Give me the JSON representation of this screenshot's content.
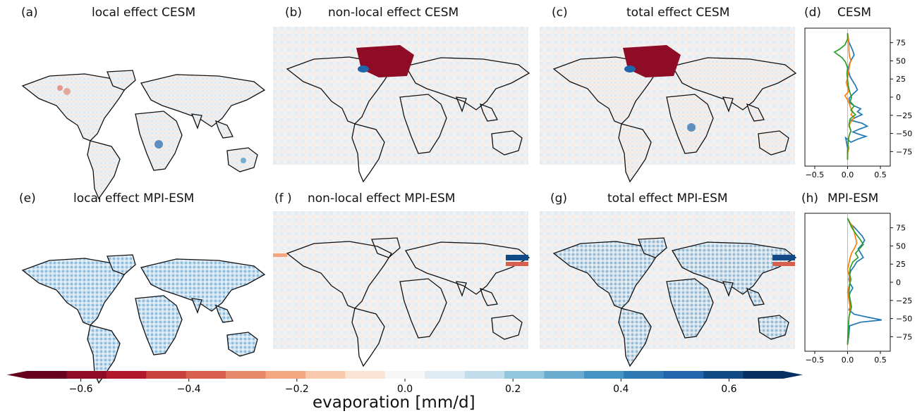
{
  "panels": {
    "a": {
      "letter": "(a)",
      "title": "local effect CESM"
    },
    "b": {
      "letter": "(b)",
      "title": "non-local effect CESM"
    },
    "c": {
      "letter": "(c)",
      "title": "total effect CESM"
    },
    "d": {
      "letter": "(d)",
      "title": "CESM"
    },
    "e": {
      "letter": "(e)",
      "title": "local effect MPI-ESM"
    },
    "f": {
      "letter": "(f )",
      "title": "non-local effect MPI-ESM"
    },
    "g": {
      "letter": "(g)",
      "title": "total effect MPI-ESM"
    },
    "h": {
      "letter": "(h)",
      "title": "MPI-ESM"
    }
  },
  "colorbar": {
    "label": "evaporation [mm/d]",
    "ticks": [
      "−0.6",
      "−0.4",
      "−0.2",
      "0.0",
      "0.2",
      "0.4",
      "0.6"
    ],
    "tick_values": [
      -0.6,
      -0.4,
      -0.2,
      0.0,
      0.2,
      0.4,
      0.6
    ],
    "range": [
      -0.7,
      0.7
    ],
    "colors": [
      "#67001f",
      "#8e0c25",
      "#b2182b",
      "#c8413e",
      "#d6604d",
      "#e6896b",
      "#f4a582",
      "#f9c9ae",
      "#fbe3d4",
      "#f7f7f7",
      "#deebf2",
      "#c1dcea",
      "#92c5de",
      "#6aaccf",
      "#4393c3",
      "#2f79b5",
      "#2166ac",
      "#124a85",
      "#053061"
    ]
  },
  "chart_data": [
    {
      "type": "line",
      "panel": "d",
      "title": "CESM",
      "xlim": [
        -0.65,
        0.65
      ],
      "ylim": [
        -95,
        95
      ],
      "xticks": [
        "−0.5",
        "0.0",
        "0.5"
      ],
      "xtick_values": [
        -0.5,
        0.0,
        0.5
      ],
      "yticks": [
        "75",
        "50",
        "25",
        "0",
        "−25",
        "−50",
        "−75"
      ],
      "ytick_values": [
        75,
        50,
        25,
        0,
        -25,
        -50,
        -75
      ],
      "series": [
        {
          "color": "#1f77b4",
          "x": [
            0.0,
            0.01,
            0.02,
            0.05,
            0.08,
            0.1,
            0.06,
            0.03,
            0.01,
            0.02,
            0.04,
            0.08,
            0.12,
            0.15,
            0.08,
            0.02,
            0.04,
            0.1,
            0.2,
            0.15,
            0.22,
            0.12,
            0.05,
            0.22,
            0.3,
            0.18,
            0.08,
            0.2,
            0.28,
            0.15,
            0.05,
            -0.03,
            0.0,
            0.0
          ],
          "y": [
            88,
            82,
            76,
            70,
            64,
            58,
            52,
            46,
            40,
            34,
            28,
            22,
            16,
            10,
            4,
            -2,
            -8,
            -12,
            -16,
            -20,
            -24,
            -28,
            -32,
            -36,
            -40,
            -44,
            -48,
            -52,
            -54,
            -58,
            -62,
            -56,
            -70,
            -86
          ]
        },
        {
          "color": "#ff7f0e",
          "x": [
            0.0,
            0.01,
            0.02,
            0.02,
            0.03,
            0.05,
            0.03,
            0.02,
            0.01,
            0.0,
            -0.02,
            0.0,
            0.02,
            -0.04,
            0.0,
            0.03,
            0.05,
            0.08,
            0.05,
            0.1,
            0.05,
            0.02,
            0.05,
            0.03,
            0.01,
            0.0,
            0.02,
            0.0,
            0.0
          ],
          "y": [
            88,
            80,
            72,
            64,
            56,
            50,
            44,
            38,
            32,
            26,
            20,
            14,
            8,
            2,
            -4,
            -10,
            -16,
            -20,
            -24,
            -28,
            -34,
            -40,
            -46,
            -52,
            -58,
            -64,
            -70,
            -78,
            -86
          ]
        },
        {
          "color": "#2ca02c",
          "x": [
            0.0,
            0.0,
            -0.04,
            -0.12,
            -0.2,
            -0.14,
            -0.08,
            -0.03,
            0.0,
            -0.01,
            0.0,
            0.01,
            0.03,
            0.06,
            0.04,
            0.1,
            0.05,
            0.12,
            0.04,
            0.02,
            0.05,
            0.02,
            0.01,
            0.0,
            0.0
          ],
          "y": [
            88,
            80,
            72,
            66,
            62,
            58,
            54,
            48,
            40,
            32,
            24,
            16,
            8,
            0,
            -6,
            -12,
            -18,
            -24,
            -30,
            -38,
            -46,
            -54,
            -62,
            -74,
            -86
          ]
        }
      ]
    },
    {
      "type": "line",
      "panel": "h",
      "title": "MPI-ESM",
      "xlim": [
        -0.65,
        0.65
      ],
      "ylim": [
        -95,
        95
      ],
      "xticks": [
        "−0.5",
        "0.0",
        "0.5"
      ],
      "xtick_values": [
        -0.5,
        0.0,
        0.5
      ],
      "yticks": [
        "75",
        "50",
        "25",
        "0",
        "−25",
        "−50",
        "−75"
      ],
      "ytick_values": [
        75,
        50,
        25,
        0,
        -25,
        -50,
        -75
      ],
      "series": [
        {
          "color": "#1f77b4",
          "x": [
            0.0,
            0.02,
            0.05,
            0.1,
            0.14,
            0.18,
            0.22,
            0.26,
            0.22,
            0.16,
            0.2,
            0.24,
            0.14,
            0.1,
            0.05,
            0.03,
            0.02,
            0.04,
            0.08,
            0.04,
            0.02,
            0.03,
            0.05,
            0.02,
            0.1,
            0.3,
            0.52,
            0.2,
            0.03,
            0.02,
            0.0
          ],
          "y": [
            88,
            84,
            80,
            76,
            72,
            68,
            64,
            58,
            52,
            46,
            40,
            34,
            28,
            22,
            16,
            10,
            4,
            -2,
            -8,
            -14,
            -20,
            -26,
            -32,
            -38,
            -44,
            -48,
            -52,
            -55,
            -60,
            -72,
            -86
          ]
        },
        {
          "color": "#ff7f0e",
          "x": [
            0.0,
            0.04,
            0.08,
            0.1,
            0.12,
            0.14,
            0.1,
            0.06,
            0.04,
            0.02,
            0.0,
            0.02,
            0.04,
            0.02,
            0.0,
            0.02,
            0.04,
            0.02,
            0.01,
            0.0
          ],
          "y": [
            88,
            82,
            76,
            70,
            62,
            54,
            46,
            40,
            34,
            26,
            18,
            10,
            2,
            -6,
            -14,
            -24,
            -36,
            -50,
            -66,
            -86
          ]
        },
        {
          "color": "#2ca02c",
          "x": [
            0.0,
            0.03,
            0.06,
            0.1,
            0.15,
            0.2,
            0.24,
            0.18,
            0.12,
            0.16,
            0.08,
            0.04,
            0.03,
            0.05,
            0.03,
            0.02,
            0.04,
            0.06,
            0.02,
            0.01,
            0.0
          ],
          "y": [
            88,
            82,
            76,
            70,
            64,
            58,
            52,
            46,
            40,
            34,
            28,
            20,
            12,
            4,
            -4,
            -14,
            -24,
            -34,
            -48,
            -64,
            -86
          ]
        }
      ]
    }
  ]
}
